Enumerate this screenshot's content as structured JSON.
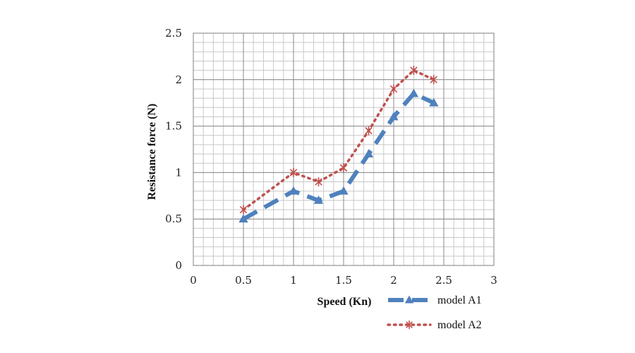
{
  "chart_data": {
    "type": "line",
    "xlabel": "Speed  (Kn)",
    "ylabel": "Resistance force (N)",
    "xlim": [
      0,
      3
    ],
    "ylim": [
      0,
      2.5
    ],
    "xticks": [
      "0",
      "0.5",
      "1",
      "1.5",
      "2",
      "2.5",
      "3"
    ],
    "yticks": [
      "0",
      "0.5",
      "1",
      "1.5",
      "2",
      "2.5"
    ],
    "grid": true,
    "legend_position": "bottom-right",
    "series": [
      {
        "name": "model A1",
        "color": "#4f81bd",
        "line_style": "dashed",
        "marker": "triangle",
        "x": [
          0.5,
          1.0,
          1.25,
          1.5,
          1.75,
          2.0,
          2.2,
          2.4
        ],
        "y": [
          0.5,
          0.8,
          0.7,
          0.8,
          1.2,
          1.6,
          1.85,
          1.75
        ]
      },
      {
        "name": "model A2",
        "color": "#c0504d",
        "line_style": "dotted",
        "marker": "asterisk",
        "x": [
          0.5,
          1.0,
          1.25,
          1.5,
          1.75,
          2.0,
          2.2,
          2.4
        ],
        "y": [
          0.6,
          1.0,
          0.9,
          1.05,
          1.45,
          1.9,
          2.1,
          2.0
        ]
      }
    ]
  }
}
